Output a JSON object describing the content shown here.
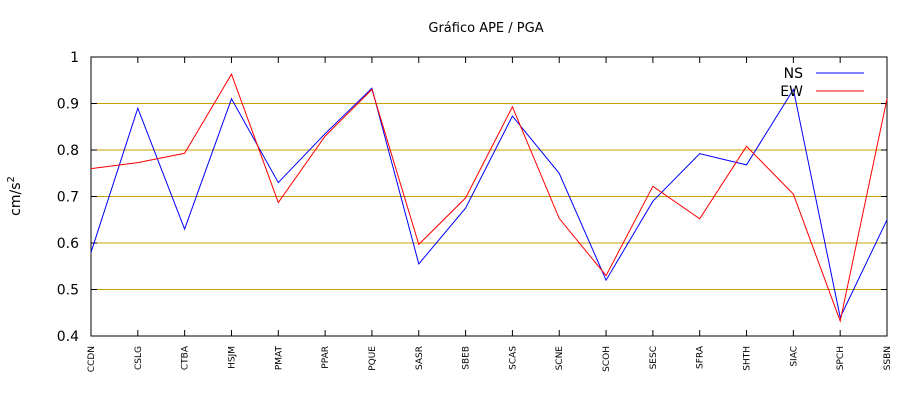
{
  "chart_data": {
    "type": "line",
    "title": "Gráfico  APE / PGA",
    "ylabel_main": "cm/s",
    "ylabel_sup": "2",
    "xlabel": "",
    "ylim": [
      0.4,
      1.0
    ],
    "yticks": [
      "0.4",
      "0.5",
      "0.6",
      "0.7",
      "0.8",
      "0.9",
      "1"
    ],
    "grid": "horizontal",
    "legend_position": "top-right",
    "categories": [
      "CCDN",
      "CSLG",
      "CTBA",
      "HSJM",
      "PMAT",
      "PPAR",
      "PQUE",
      "SASR",
      "SBEB",
      "SCAS",
      "SCNE",
      "SCOH",
      "SESC",
      "SFRA",
      "SHTH",
      "SIAC",
      "SPCH",
      "SSBN"
    ],
    "series": [
      {
        "name": "NS",
        "color": "#0000ff",
        "values": [
          0.58,
          0.89,
          0.63,
          0.91,
          0.73,
          0.835,
          0.933,
          0.555,
          0.675,
          0.873,
          0.75,
          0.52,
          0.69,
          0.792,
          0.768,
          0.93,
          0.44,
          0.65
        ]
      },
      {
        "name": "EW",
        "color": "#ff0000",
        "values": [
          0.76,
          0.773,
          0.793,
          0.963,
          0.687,
          0.83,
          0.93,
          0.597,
          0.697,
          0.893,
          0.653,
          0.53,
          0.722,
          0.652,
          0.808,
          0.705,
          0.432,
          0.91
        ]
      }
    ]
  },
  "colors": {
    "grid": "#c8a000",
    "axis": "#000000"
  }
}
